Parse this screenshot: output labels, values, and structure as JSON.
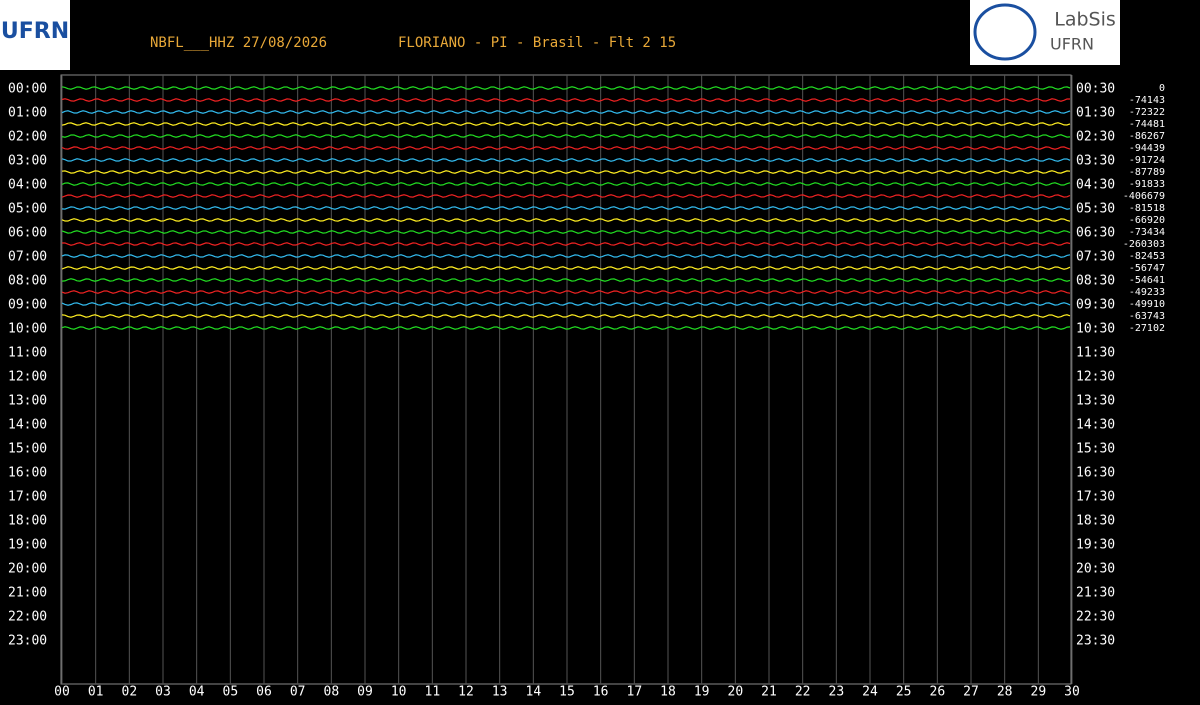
{
  "chart_data": {
    "type": "helicorder",
    "title": "NBFL___HHZ 27/08/2026",
    "subtitle": "FLORIANO - PI - Brasil - Flt 2 15",
    "logo_left": "UFRN",
    "logo_right": [
      "LabSis",
      "UFRN"
    ],
    "xlim": [
      0,
      30
    ],
    "xticks": [
      {
        "value": 0,
        "label": "00"
      },
      {
        "value": 1,
        "label": "01"
      },
      {
        "value": 2,
        "label": "02"
      },
      {
        "value": 3,
        "label": "03"
      },
      {
        "value": 4,
        "label": "04"
      },
      {
        "value": 5,
        "label": "05"
      },
      {
        "value": 6,
        "label": "06"
      },
      {
        "value": 7,
        "label": "07"
      },
      {
        "value": 8,
        "label": "08"
      },
      {
        "value": 9,
        "label": "09"
      },
      10,
      11,
      12,
      13,
      14,
      15,
      16,
      17,
      18,
      19,
      20,
      21,
      22,
      23,
      24,
      25,
      26,
      27,
      28,
      29,
      30
    ],
    "row_labels_left": [
      "00:00",
      "01:00",
      "02:00",
      "03:00",
      "04:00",
      "05:00",
      "06:00",
      "07:00",
      "08:00",
      "09:00",
      "10:00",
      "11:00",
      "12:00",
      "13:00",
      "14:00",
      "15:00",
      "16:00",
      "17:00",
      "18:00",
      "19:00",
      "20:00",
      "21:00",
      "22:00",
      "23:00"
    ],
    "row_labels_right": [
      "00:30",
      "01:30",
      "02:30",
      "03:30",
      "04:30",
      "05:30",
      "06:30",
      "07:30",
      "08:30",
      "09:30",
      "10:30",
      "11:30",
      "12:30",
      "13:30",
      "14:30",
      "15:30",
      "16:30",
      "17:30",
      "18:30",
      "19:30",
      "20:30",
      "21:30",
      "22:30",
      "23:30"
    ],
    "offsets": [
      0,
      -74143,
      -72322,
      -74481,
      -86267,
      -94439,
      -91724,
      -87789,
      -91833,
      -406679,
      -81518,
      -66920,
      -73434,
      -260303,
      -82453,
      -56747,
      -54641,
      -49233,
      -49910,
      -63743,
      -27102
    ],
    "trace_colors": [
      "#22dd22",
      "#ee2222",
      "#33bbee",
      "#ffee22"
    ],
    "grid": true
  }
}
